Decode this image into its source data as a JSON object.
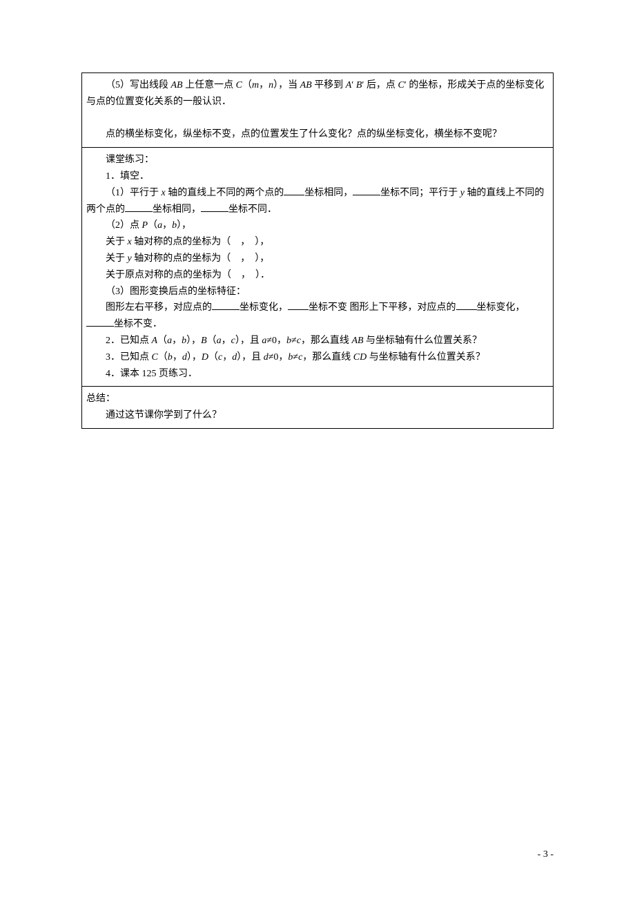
{
  "section1": {
    "p1_a": "（5）写出线段 ",
    "p1_ab": "AB",
    "p1_b": " 上任意一点 ",
    "p1_c": "C",
    "p1_c2": "（",
    "p1_m": "m",
    "p1_comma": "，",
    "p1_n": "n",
    "p1_c3": "），当 ",
    "p1_ab2": "AB",
    "p1_d": " 平移到 ",
    "p1_a1": "A",
    "p1_prime1": "′ ",
    "p1_b1": "B",
    "p1_prime2": "′ 后，点 ",
    "p1_c1": "C",
    "p1_prime3": "′ 的坐标，形成关于点的坐标变化与点的位置变化关系的一般认识．",
    "p2": "点的横坐标变化，纵坐标不变，点的位置发生了什么变化？点的纵坐标变化，横坐标不变呢？"
  },
  "section2": {
    "h1": "课堂练习：",
    "q1": "1．填空．",
    "q1_1a": "（1）平行于 ",
    "q1_1x": "x",
    "q1_1b": " 轴的直线上不同的两个点的",
    "q1_1c": "坐标相同，",
    "q1_1d": "坐标不同；平行于 ",
    "q1_1y": "y",
    "q1_1e": " 轴的直线上不同的两个点的",
    "q1_1f": "坐标相同，",
    "q1_1g": "坐标不同．",
    "q1_2a": "（2）点 ",
    "q1_2p": "P",
    "q1_2b": "（",
    "q1_2av": "a",
    "q1_2c": "，",
    "q1_2bv": "b",
    "q1_2d": "），",
    "q1_2x1": "关于 ",
    "q1_2x2": "x",
    "q1_2x3": " 轴对称的点的坐标为（　，　），",
    "q1_2y1": "关于 ",
    "q1_2y2": "y",
    "q1_2y3": " 轴对称的点的坐标为（　，　），",
    "q1_2o": "关于原点对称的点的坐标为（　，　）．",
    "q1_3a": "（3）图形变换后点的坐标特征：",
    "q1_3b": "图形左右平移，对应点的",
    "q1_3c": "坐标变化，",
    "q1_3d": "坐标不变 图形上下平移，对应点的",
    "q1_3e": "坐标变化，",
    "q1_3f": "坐标不变．",
    "q2a": "2．已知点 ",
    "q2A": "A",
    "q2b": "（",
    "q2av": "a",
    "q2c1": "，",
    "q2bv": "b",
    "q2d": "），",
    "q2B": "B",
    "q2e": "（",
    "q2av2": "a",
    "q2c2": "，",
    "q2cv": "c",
    "q2f": "），且 ",
    "q2av3": "a",
    "q2g": "≠0，",
    "q2bv2": "b",
    "q2h": "≠",
    "q2cv2": "c",
    "q2i": "，那么直线 ",
    "q2AB": "AB",
    "q2j": " 与坐标轴有什么位置关系？",
    "q3a": "3．已知点 ",
    "q3C": "C",
    "q3b": "（",
    "q3bv": "b",
    "q3c1": "，",
    "q3dv": "d",
    "q3d": "），",
    "q3D": "D",
    "q3e": "（",
    "q3cv": "c",
    "q3c2": "，",
    "q3dv2": "d",
    "q3f": "），且 ",
    "q3dv3": "d",
    "q3g": "≠0，",
    "q3bv2": "b",
    "q3h": "≠",
    "q3cv2": "c",
    "q3i": "，那么直线 ",
    "q3CD": "CD",
    "q3j": " 与坐标轴有什么位置关系？",
    "q4": "4．课本 125 页练习．"
  },
  "section3": {
    "h": "总结：",
    "p": "通过这节课你学到了什么？"
  },
  "pageNumber": "- 3 -"
}
